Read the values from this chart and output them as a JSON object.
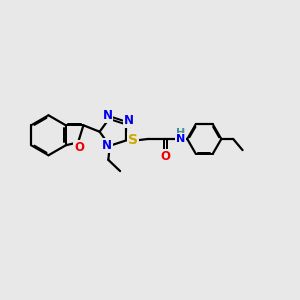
{
  "bg_color": "#e8e8e8",
  "bond_color": "#000000",
  "bond_width": 1.6,
  "atom_colors": {
    "N": "#0000ee",
    "O": "#ee0000",
    "S": "#ccaa00",
    "H": "#4a9090",
    "C": "#000000"
  },
  "font_size": 8.5,
  "figsize": [
    3.0,
    3.0
  ],
  "dpi": 100,
  "xlim": [
    0,
    10
  ],
  "ylim": [
    1,
    7.5
  ]
}
